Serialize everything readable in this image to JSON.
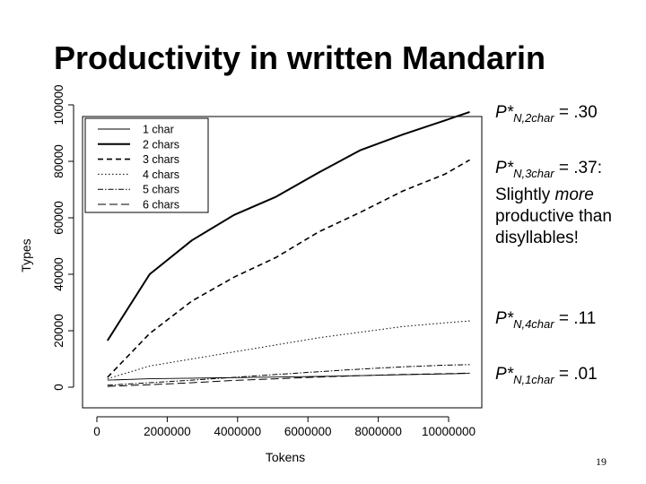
{
  "slide": {
    "title": "Productivity in written Mandarin",
    "page_number": "19"
  },
  "notes": [
    {
      "p": "P*",
      "sub": "N,2char",
      "value": " = .30",
      "extra": []
    },
    {
      "p": "P*",
      "sub": "N,3char",
      "value": " = .37",
      "extra_lines": [
        ":",
        "Slightly ",
        "more",
        "productive than",
        "disyllables!"
      ]
    },
    {
      "p": "P*",
      "sub": "N,4char",
      "value": " = .11"
    },
    {
      "p": "P*",
      "sub": "N,1char",
      "value": " = .01"
    }
  ],
  "chart_data": {
    "type": "line",
    "xlabel": "Tokens",
    "ylabel": "Types",
    "xlim": [
      0,
      11000000
    ],
    "ylim": [
      0,
      100000
    ],
    "xticks": [
      "0",
      "2000000",
      "4000000",
      "6000000",
      "8000000",
      "10000000"
    ],
    "yticks": [
      "0",
      "20000",
      "40000",
      "60000",
      "80000",
      "100000"
    ],
    "legend": {
      "placement": "top-left",
      "entries": [
        "1 char",
        "2 chars",
        "3 chars",
        "4 chars",
        "5 chars",
        "6 chars"
      ]
    },
    "x": [
      300000,
      1500000,
      2700000,
      3900000,
      5100000,
      6300000,
      7500000,
      8700000,
      9900000,
      10600000
    ],
    "series": [
      {
        "name": "1 char",
        "dash": "",
        "width": 0.9,
        "values": [
          2500,
          3000,
          3200,
          3400,
          3600,
          3800,
          4100,
          4400,
          4700,
          4900
        ]
      },
      {
        "name": "2 chars",
        "dash": "",
        "width": 2.0,
        "values": [
          16500,
          40000,
          52000,
          61000,
          67500,
          76000,
          84000,
          89500,
          94500,
          97500
        ]
      },
      {
        "name": "3 chars",
        "dash": "6,4",
        "width": 1.6,
        "values": [
          3500,
          19000,
          30500,
          39000,
          46000,
          55000,
          62000,
          69500,
          75500,
          80500
        ]
      },
      {
        "name": "4 chars",
        "dash": "1.5,2.5",
        "width": 1.0,
        "values": [
          3000,
          7500,
          10000,
          12500,
          15000,
          17500,
          19500,
          21500,
          22800,
          23500
        ]
      },
      {
        "name": "5 chars",
        "dash": "6,2,1.5,2",
        "width": 1.0,
        "values": [
          700,
          1600,
          2500,
          3500,
          4500,
          5500,
          6400,
          7200,
          7800,
          8000
        ]
      },
      {
        "name": "6 chars",
        "dash": "9,4",
        "width": 1.0,
        "values": [
          300,
          900,
          1600,
          2400,
          3000,
          3600,
          4100,
          4500,
          4800,
          5000
        ]
      }
    ]
  }
}
